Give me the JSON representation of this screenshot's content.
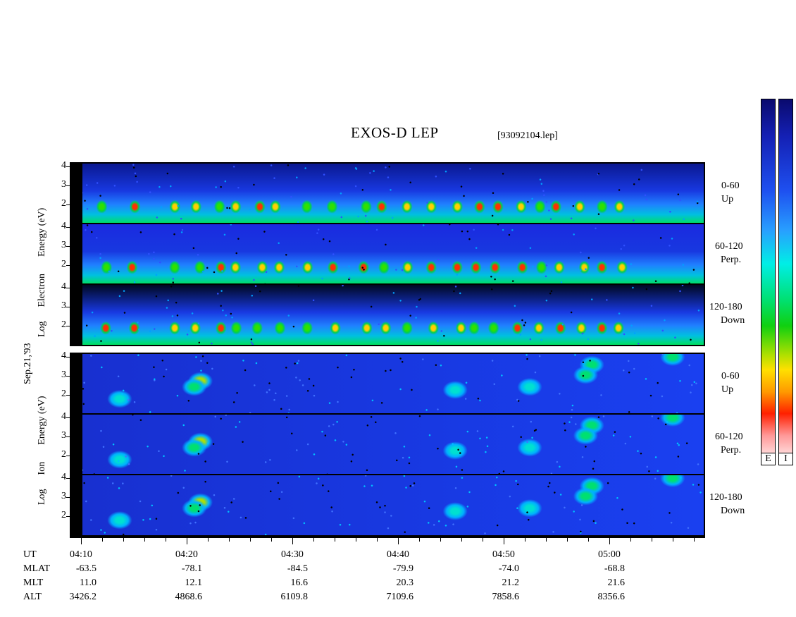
{
  "chart_data": {
    "type": "heatmap",
    "title": "EXOS-D LEP",
    "file_label": "[93092104.lep]",
    "date_label": "Sep.21,'93",
    "colorbar": {
      "labels": [
        "E",
        "I"
      ],
      "colors_high_to_low": [
        "#0a0a6e",
        "#1420b4",
        "#1e50f0",
        "#28a0ff",
        "#00eee6",
        "#00e070",
        "#10d010",
        "#b0e000",
        "#ffe000",
        "#ff9a00",
        "#ff2000",
        "#ff9898",
        "#ffffff"
      ]
    },
    "electron_group": {
      "ylabel_lines": [
        "Log",
        "Electron",
        "Energy (eV)"
      ],
      "panels": [
        {
          "channel_lines": [
            "0-60",
            "Up"
          ],
          "yticks": [
            "4",
            "3",
            "2"
          ]
        },
        {
          "channel_lines": [
            "60-120",
            "Perp."
          ],
          "yticks": [
            "4",
            "3",
            "2"
          ]
        },
        {
          "channel_lines": [
            "120-180",
            "Down"
          ],
          "yticks": [
            "4",
            "3",
            "2"
          ]
        }
      ]
    },
    "ion_group": {
      "ylabel_lines": [
        "Log",
        "Ion",
        "Energy (eV)"
      ],
      "panels": [
        {
          "channel_lines": [
            "0-60",
            "Up"
          ],
          "yticks": [
            "4",
            "3",
            "2"
          ]
        },
        {
          "channel_lines": [
            "60-120",
            "Perp."
          ],
          "yticks": [
            "4",
            "3",
            "2"
          ]
        },
        {
          "channel_lines": [
            "120-180",
            "Down"
          ],
          "yticks": [
            "4",
            "3",
            "2"
          ]
        }
      ]
    },
    "xaxis": {
      "row_labels": [
        "UT",
        "MLAT",
        "MLT",
        "ALT"
      ],
      "ticks": [
        {
          "UT": "04:10",
          "MLAT": "-63.5",
          "MLT": "11.0",
          "ALT": "3426.2"
        },
        {
          "UT": "04:20",
          "MLAT": "-78.1",
          "MLT": "12.1",
          "ALT": "4868.6"
        },
        {
          "UT": "04:30",
          "MLAT": "-84.5",
          "MLT": "16.6",
          "ALT": "6109.8"
        },
        {
          "UT": "04:40",
          "MLAT": "-79.9",
          "MLT": "20.3",
          "ALT": "7109.6"
        },
        {
          "UT": "04:50",
          "MLAT": "-74.0",
          "MLT": "21.2",
          "ALT": "7858.6"
        },
        {
          "UT": "05:00",
          "MLAT": "-68.8",
          "MLT": "21.6",
          "ALT": "8356.6"
        }
      ]
    }
  }
}
